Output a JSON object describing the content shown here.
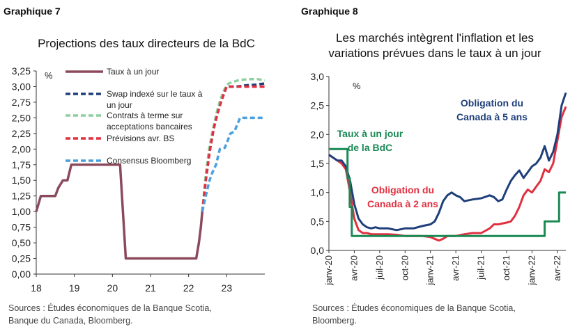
{
  "left": {
    "label": "Graphique 7",
    "title": "Projections des taux directeurs de la BdC",
    "sources_line1": "Sources : Études économiques de la Banque Scotia,",
    "sources_line2": "Banque du Canada, Bloomberg."
  },
  "right": {
    "label": "Graphique 8",
    "title_line1": "Les marchés intègrent l'inflation et les",
    "title_line2": "variations prévues dans le taux à un jour",
    "sources_line1": "Sources : Études économiques de la Banque Scotia,",
    "sources_line2": "Bloomberg."
  },
  "chart_data": [
    {
      "type": "line",
      "ylabel": "%",
      "xlabel": "",
      "xlim": [
        18,
        24
      ],
      "ylim": [
        0,
        3.25
      ],
      "x_ticks": [
        18,
        19,
        20,
        21,
        22,
        23
      ],
      "x_tick_labels": [
        "18",
        "19",
        "20",
        "21",
        "22",
        "23"
      ],
      "y_ticks": [
        "0,00",
        "0,25",
        "0,50",
        "0,75",
        "1,00",
        "1,25",
        "1,50",
        "1,75",
        "2,00",
        "2,25",
        "2,50",
        "2,75",
        "3,00",
        "3,25"
      ],
      "legend_position": "top-left",
      "series": [
        {
          "name": "Taux à un jour",
          "color": "#8b4a5c",
          "dash": "solid",
          "x": [
            18.0,
            18.12,
            18.5,
            18.58,
            18.7,
            18.82,
            18.92,
            20.2,
            20.35,
            22.2,
            22.27,
            22.32,
            22.36
          ],
          "y": [
            1.0,
            1.25,
            1.25,
            1.38,
            1.5,
            1.5,
            1.75,
            1.75,
            0.25,
            0.25,
            0.5,
            0.75,
            1.0
          ]
        },
        {
          "name": "Swap indexé sur le taux à un jour",
          "color": "#1f3f7a",
          "dash": "dashed",
          "x": [
            22.36,
            22.45,
            22.55,
            22.65,
            22.75,
            22.85,
            22.95,
            23.0,
            23.25,
            23.5,
            23.75,
            24.0
          ],
          "y": [
            1.0,
            1.5,
            1.95,
            2.3,
            2.6,
            2.8,
            2.95,
            3.0,
            3.0,
            3.02,
            3.03,
            3.05
          ]
        },
        {
          "name": "Contrats à terme sur acceptations bancaires",
          "color": "#8fcf9f",
          "dash": "dashed",
          "x": [
            22.36,
            22.45,
            22.55,
            22.65,
            22.75,
            22.85,
            22.95,
            23.05,
            23.3,
            23.55,
            23.8,
            24.0
          ],
          "y": [
            1.0,
            1.6,
            2.05,
            2.35,
            2.62,
            2.82,
            2.97,
            3.05,
            3.1,
            3.12,
            3.12,
            3.1
          ]
        },
        {
          "name": "Prévisions avr. BS",
          "color": "#e03040",
          "dash": "dashed",
          "x": [
            22.36,
            22.45,
            22.55,
            22.65,
            22.75,
            22.85,
            22.95,
            23.0,
            24.0
          ],
          "y": [
            1.0,
            1.5,
            1.95,
            2.3,
            2.55,
            2.75,
            2.92,
            3.0,
            3.0
          ]
        },
        {
          "name": "Consensus Bloomberg",
          "color": "#4a9fdc",
          "dash": "dashed",
          "x": [
            22.36,
            22.45,
            22.55,
            22.62,
            22.72,
            22.82,
            22.95,
            23.1,
            23.2,
            23.35,
            23.4,
            24.0
          ],
          "y": [
            1.0,
            1.25,
            1.5,
            1.62,
            1.75,
            2.0,
            2.02,
            2.25,
            2.28,
            2.5,
            2.5,
            2.5
          ]
        }
      ]
    },
    {
      "type": "line",
      "ylabel": "%",
      "xlabel": "",
      "xlim": [
        0,
        28
      ],
      "ylim": [
        0,
        3
      ],
      "x_tick_labels": [
        "janv-20",
        "avr-20",
        "juil-20",
        "oct-20",
        "janv-21",
        "avr-21",
        "juil-21",
        "oct-21",
        "janv-22",
        "avr-22"
      ],
      "y_ticks": [
        "0,0",
        "0,5",
        "1,0",
        "1,5",
        "2,0",
        "2,5",
        "3,0"
      ],
      "annotations": [
        {
          "text_line1": "Obligation du",
          "text_line2": "Canada à 5 ans",
          "color": "#1f3f7a"
        },
        {
          "text_line1": "Taux à un jour",
          "text_line2": "de la BdC",
          "color": "#1a8a55"
        },
        {
          "text_line1": "Obligation du",
          "text_line2": "Canada à 2 ans",
          "color": "#e03040"
        }
      ],
      "series": [
        {
          "name": "Obligation du Canada à 5 ans",
          "color": "#1f3f7a",
          "x": [
            0,
            0.5,
            1,
            1.5,
            2,
            2.5,
            3,
            3.5,
            4,
            4.5,
            5,
            5.5,
            6,
            7,
            8,
            9,
            10,
            11,
            12,
            12.5,
            13,
            13.5,
            14,
            14.5,
            15,
            15.5,
            16,
            17,
            18,
            19,
            19.5,
            20,
            20.5,
            21,
            21.5,
            22,
            22.5,
            23,
            23.5,
            24,
            24.5,
            25,
            25.5,
            26,
            26.5,
            27,
            27.5,
            28
          ],
          "y": [
            1.65,
            1.6,
            1.55,
            1.55,
            1.45,
            1.2,
            0.8,
            0.55,
            0.45,
            0.4,
            0.38,
            0.4,
            0.38,
            0.38,
            0.35,
            0.38,
            0.38,
            0.42,
            0.45,
            0.5,
            0.65,
            0.85,
            0.95,
            1.0,
            0.95,
            0.92,
            0.85,
            0.88,
            0.9,
            0.95,
            0.92,
            0.85,
            0.88,
            1.05,
            1.2,
            1.3,
            1.38,
            1.25,
            1.35,
            1.45,
            1.5,
            1.6,
            1.8,
            1.55,
            1.7,
            2.0,
            2.5,
            2.72
          ]
        },
        {
          "name": "Obligation du Canada à 2 ans",
          "color": "#e03040",
          "x": [
            0,
            0.5,
            1,
            1.5,
            2,
            2.5,
            3,
            3.5,
            4,
            4.5,
            5,
            6,
            7,
            8,
            9,
            10,
            11,
            12,
            12.5,
            13,
            13.5,
            14,
            15,
            16,
            17,
            18,
            19,
            19.5,
            20,
            21,
            21.5,
            22,
            22.5,
            23,
            23.5,
            24,
            24.5,
            25,
            25.5,
            26,
            26.5,
            27,
            27.5,
            28
          ],
          "y": [
            1.65,
            1.6,
            1.55,
            1.5,
            1.4,
            1.0,
            0.55,
            0.35,
            0.3,
            0.3,
            0.28,
            0.28,
            0.28,
            0.27,
            0.25,
            0.25,
            0.25,
            0.23,
            0.2,
            0.17,
            0.2,
            0.25,
            0.25,
            0.28,
            0.3,
            0.3,
            0.38,
            0.45,
            0.45,
            0.48,
            0.5,
            0.6,
            0.75,
            0.95,
            1.05,
            1.0,
            1.1,
            1.2,
            1.4,
            1.35,
            1.5,
            1.9,
            2.3,
            2.48
          ]
        },
        {
          "name": "Taux à un jour de la BdC",
          "color": "#1a8a55",
          "x": [
            0,
            2.2,
            2.2,
            2.45,
            2.45,
            2.7,
            2.7,
            25.5,
            25.5,
            27.2,
            27.2,
            28
          ],
          "y": [
            1.75,
            1.75,
            1.25,
            1.25,
            0.75,
            0.75,
            0.25,
            0.25,
            0.5,
            0.5,
            1.0,
            1.0
          ]
        }
      ]
    }
  ]
}
